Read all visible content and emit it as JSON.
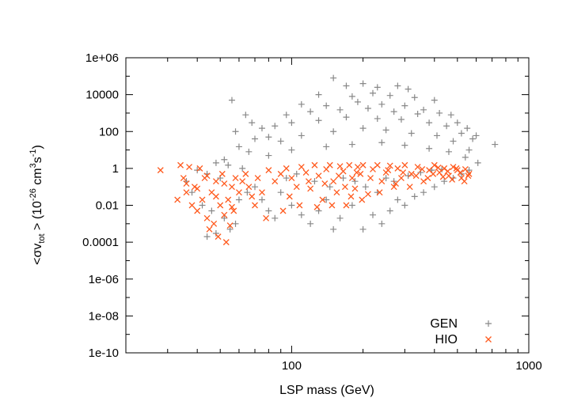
{
  "chart_data": {
    "type": "scatter",
    "title": "",
    "xlabel": "LSP mass (GeV)",
    "ylabel": {
      "prefix": "<σv",
      "sub": "tot",
      "suffix": " >  (10",
      "exp1": "-26",
      "unit1": " cm",
      "exp2": "3",
      "unit2": "s",
      "exp3": "-1",
      "close": ")"
    },
    "x_scale": "log",
    "y_scale": "log",
    "xlim": [
      20,
      1000
    ],
    "ylim": [
      1e-10,
      1000000.0
    ],
    "x_ticks": [
      {
        "value": 100,
        "label": "100"
      },
      {
        "value": 1000,
        "label": "1000"
      }
    ],
    "y_ticks": [
      {
        "value": 1e-10,
        "label": "1e-10"
      },
      {
        "value": 1e-08,
        "label": "1e-08"
      },
      {
        "value": 1e-06,
        "label": "1e-06"
      },
      {
        "value": 0.0001,
        "label": "0.0001"
      },
      {
        "value": 0.01,
        "label": "0.01"
      },
      {
        "value": 1,
        "label": "1"
      },
      {
        "value": 100,
        "label": "100"
      },
      {
        "value": 10000,
        "label": "10000"
      },
      {
        "value": 1000000,
        "label": "1e+06"
      }
    ],
    "grid": false,
    "legend_position": "bottom-right",
    "series": [
      {
        "name": "GEN",
        "marker": "plus",
        "color": "#888888",
        "points": [
          [
            150,
            80000
          ],
          [
            170,
            30000
          ],
          [
            200,
            40000
          ],
          [
            230,
            25000
          ],
          [
            280,
            30000
          ],
          [
            310,
            20000
          ],
          [
            130,
            10000
          ],
          [
            180,
            8000
          ],
          [
            220,
            12000
          ],
          [
            260,
            9000
          ],
          [
            330,
            7000
          ],
          [
            400,
            5000
          ],
          [
            110,
            3000
          ],
          [
            140,
            2500
          ],
          [
            190,
            4000
          ],
          [
            240,
            3000
          ],
          [
            300,
            2500
          ],
          [
            360,
            1500
          ],
          [
            420,
            1000
          ],
          [
            470,
            800
          ],
          [
            95,
            800
          ],
          [
            120,
            1200
          ],
          [
            160,
            1500
          ],
          [
            210,
            1800
          ],
          [
            270,
            1200
          ],
          [
            340,
            900
          ],
          [
            500,
            300
          ],
          [
            550,
            150
          ],
          [
            600,
            60
          ],
          [
            720,
            20
          ],
          [
            85,
            200
          ],
          [
            100,
            300
          ],
          [
            130,
            400
          ],
          [
            170,
            600
          ],
          [
            230,
            500
          ],
          [
            290,
            450
          ],
          [
            380,
            300
          ],
          [
            450,
            200
          ],
          [
            520,
            80
          ],
          [
            580,
            40
          ],
          [
            80,
            50
          ],
          [
            90,
            30
          ],
          [
            110,
            60
          ],
          [
            150,
            100
          ],
          [
            200,
            150
          ],
          [
            250,
            120
          ],
          [
            320,
            80
          ],
          [
            410,
            60
          ],
          [
            480,
            30
          ],
          [
            560,
            10
          ],
          [
            80,
            5
          ],
          [
            100,
            10
          ],
          [
            140,
            15
          ],
          [
            180,
            20
          ],
          [
            240,
            25
          ],
          [
            300,
            18
          ],
          [
            380,
            12
          ],
          [
            460,
            8
          ],
          [
            540,
            4
          ],
          [
            610,
            2
          ],
          [
            56,
            5000
          ],
          [
            68,
            300
          ],
          [
            64,
            800
          ],
          [
            75,
            150
          ],
          [
            58,
            100
          ],
          [
            70,
            40
          ],
          [
            60,
            15
          ],
          [
            66,
            8
          ],
          [
            52,
            3
          ],
          [
            48,
            2
          ],
          [
            54,
            1.5
          ],
          [
            62,
            1
          ],
          [
            40,
            0.8
          ],
          [
            44,
            0.5
          ],
          [
            50,
            0.3
          ],
          [
            36,
            0.2
          ],
          [
            38,
            0.05
          ],
          [
            42,
            0.01
          ],
          [
            46,
            0.005
          ],
          [
            52,
            0.002
          ],
          [
            55,
            0.0005
          ],
          [
            58,
            0.001
          ],
          [
            48,
            0.0003
          ],
          [
            44,
            0.0002
          ],
          [
            60,
            0.02
          ],
          [
            65,
            0.05
          ],
          [
            70,
            0.1
          ],
          [
            75,
            0.02
          ],
          [
            80,
            0.005
          ],
          [
            85,
            0.002
          ],
          [
            90,
            0.05
          ],
          [
            100,
            0.01
          ],
          [
            110,
            0.003
          ],
          [
            120,
            0.001
          ],
          [
            130,
            0.005
          ],
          [
            140,
            0.02
          ],
          [
            150,
            0.0005
          ],
          [
            160,
            0.002
          ],
          [
            180,
            0.01
          ],
          [
            200,
            0.0005
          ],
          [
            220,
            0.003
          ],
          [
            240,
            0.001
          ],
          [
            260,
            0.005
          ],
          [
            280,
            0.02
          ],
          [
            300,
            0.01
          ],
          [
            330,
            0.03
          ],
          [
            360,
            0.05
          ],
          [
            400,
            0.1
          ],
          [
            440,
            0.2
          ],
          [
            480,
            0.3
          ],
          [
            520,
            0.5
          ],
          [
            560,
            0.8
          ],
          [
            95,
            0.3
          ],
          [
            105,
            0.5
          ],
          [
            125,
            0.2
          ],
          [
            145,
            0.1
          ],
          [
            165,
            0.3
          ],
          [
            185,
            0.2
          ],
          [
            205,
            0.1
          ],
          [
            230,
            0.05
          ],
          [
            250,
            0.3
          ],
          [
            270,
            0.2
          ],
          [
            310,
            0.4
          ],
          [
            350,
            0.6
          ],
          [
            390,
            0.8
          ],
          [
            430,
            0.9
          ]
        ]
      },
      {
        "name": "HIO",
        "marker": "cross",
        "color": "#ff5a1e",
        "points": [
          [
            28,
            0.8
          ],
          [
            33,
            0.02
          ],
          [
            34,
            1.5
          ],
          [
            35,
            0.3
          ],
          [
            36,
            0.05
          ],
          [
            37,
            1.2
          ],
          [
            38,
            0.01
          ],
          [
            39,
            0.1
          ],
          [
            40,
            0.005
          ],
          [
            41,
            1.0
          ],
          [
            42,
            0.02
          ],
          [
            43,
            0.3
          ],
          [
            44,
            0.002
          ],
          [
            45,
            0.0005
          ],
          [
            46,
            0.05
          ],
          [
            47,
            0.001
          ],
          [
            48,
            0.2
          ],
          [
            49,
            0.0002
          ],
          [
            50,
            0.01
          ],
          [
            51,
            0.5
          ],
          [
            52,
            0.003
          ],
          [
            53,
            0.0001
          ],
          [
            54,
            0.02
          ],
          [
            55,
            0.0008
          ],
          [
            56,
            0.1
          ],
          [
            57,
            0.005
          ],
          [
            58,
            0.3
          ],
          [
            60,
            0.05
          ],
          [
            62,
            0.2
          ],
          [
            64,
            0.5
          ],
          [
            66,
            0.1
          ],
          [
            68,
            0.03
          ],
          [
            70,
            0.01
          ],
          [
            72,
            0.3
          ],
          [
            75,
            0.05
          ],
          [
            78,
            0.002
          ],
          [
            80,
            0.8
          ],
          [
            85,
            0.2
          ],
          [
            90,
            0.5
          ],
          [
            95,
            1.0
          ],
          [
            100,
            0.3
          ],
          [
            105,
            0.1
          ],
          [
            110,
            1.2
          ],
          [
            115,
            0.6
          ],
          [
            120,
            0.08
          ],
          [
            125,
            1.5
          ],
          [
            130,
            0.4
          ],
          [
            135,
            0.02
          ],
          [
            140,
            0.9
          ],
          [
            145,
            1.5
          ],
          [
            150,
            0.2
          ],
          [
            155,
            0.05
          ],
          [
            160,
            1.3
          ],
          [
            165,
            0.7
          ],
          [
            170,
            0.01
          ],
          [
            175,
            1.5
          ],
          [
            180,
            0.3
          ],
          [
            185,
            0.08
          ],
          [
            190,
            1.2
          ],
          [
            195,
            0.5
          ],
          [
            200,
            1.5
          ],
          [
            210,
            0.04
          ],
          [
            220,
            0.9
          ],
          [
            230,
            1.5
          ],
          [
            240,
            0.2
          ],
          [
            250,
            0.6
          ],
          [
            260,
            1.4
          ],
          [
            270,
            0.1
          ],
          [
            280,
            1.0
          ],
          [
            290,
            0.3
          ],
          [
            300,
            1.5
          ],
          [
            320,
            0.5
          ],
          [
            340,
            1.2
          ],
          [
            360,
            0.2
          ],
          [
            380,
            0.8
          ],
          [
            400,
            1.5
          ],
          [
            420,
            0.6
          ],
          [
            440,
            1.0
          ],
          [
            460,
            0.4
          ],
          [
            480,
            1.2
          ],
          [
            500,
            0.8
          ],
          [
            520,
            0.3
          ],
          [
            540,
            0.9
          ],
          [
            560,
            0.5
          ],
          [
            36,
            0.15
          ],
          [
            40,
            0.08
          ],
          [
            44,
            0.4
          ],
          [
            48,
            0.03
          ],
          [
            52,
            0.15
          ],
          [
            56,
            0.008
          ],
          [
            92,
            0.005
          ],
          [
            98,
            0.03
          ],
          [
            108,
            0.01
          ],
          [
            118,
            0.2
          ],
          [
            128,
            0.008
          ],
          [
            138,
            0.15
          ],
          [
            148,
            0.01
          ],
          [
            158,
            0.4
          ],
          [
            168,
            0.1
          ],
          [
            178,
            0.03
          ],
          [
            188,
            0.6
          ],
          [
            198,
            0.02
          ],
          [
            215,
            0.3
          ],
          [
            235,
            0.05
          ],
          [
            255,
            0.8
          ],
          [
            275,
            0.15
          ],
          [
            295,
            0.6
          ],
          [
            315,
            0.1
          ],
          [
            335,
            0.4
          ],
          [
            355,
            0.9
          ],
          [
            375,
            0.3
          ],
          [
            395,
            0.5
          ],
          [
            415,
            1.1
          ],
          [
            435,
            0.35
          ],
          [
            455,
            0.7
          ],
          [
            475,
            0.25
          ],
          [
            495,
            1.0
          ],
          [
            515,
            0.6
          ],
          [
            535,
            0.2
          ],
          [
            555,
            0.4
          ]
        ]
      }
    ]
  }
}
